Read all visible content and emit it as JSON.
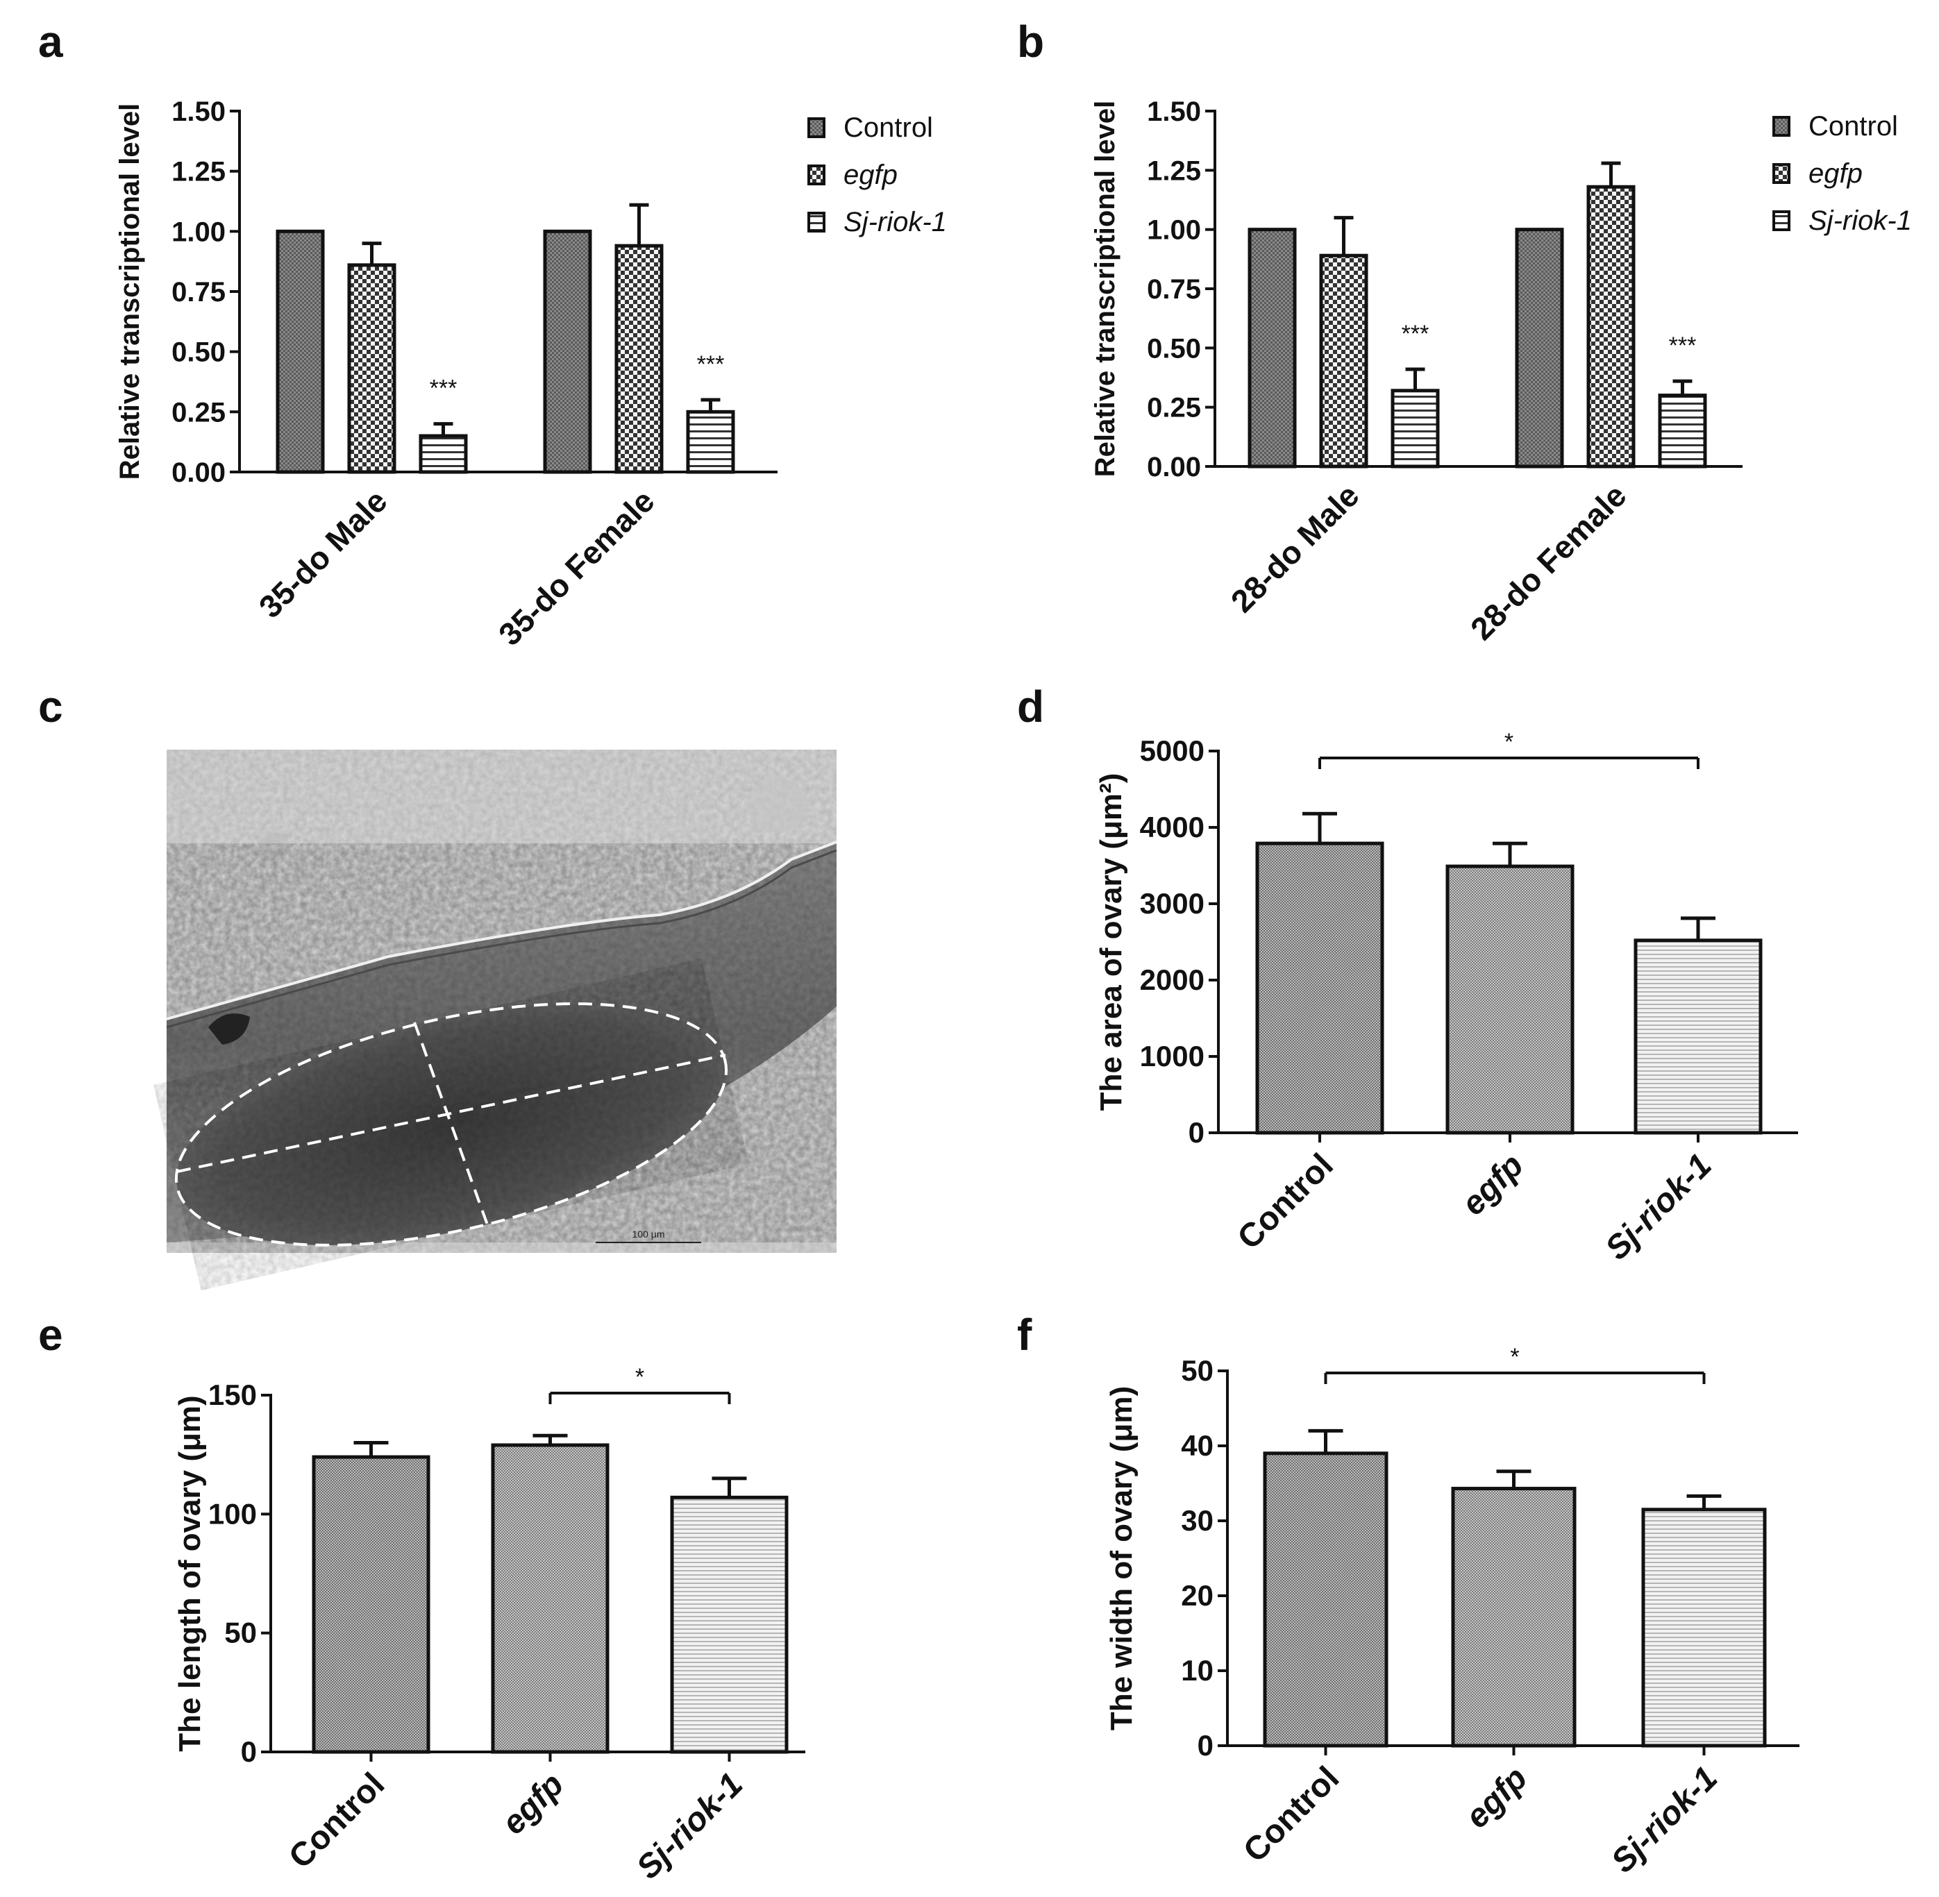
{
  "panels": {
    "a": "a",
    "b": "b",
    "c": "c",
    "d": "d",
    "e": "e",
    "f": "f"
  },
  "micrograph": {
    "scale_bar_label": "100 μm"
  },
  "chart_data": [
    {
      "id": "a",
      "type": "bar",
      "panel_label": "a",
      "ylabel": "Relative transcriptional level",
      "ylim": [
        0,
        1.5
      ],
      "yticks": [
        "0.00",
        "0.25",
        "0.50",
        "0.75",
        "1.00",
        "1.25",
        "1.50"
      ],
      "categories": [
        "35-do Male",
        "35-do Female"
      ],
      "series": [
        {
          "name": "Control",
          "italic": false,
          "values": [
            1.0,
            1.0
          ],
          "errors": [
            0,
            0
          ]
        },
        {
          "name": "egfp",
          "italic": true,
          "values": [
            0.86,
            0.94
          ],
          "errors": [
            0.09,
            0.17
          ]
        },
        {
          "name": "Sj-riok-1",
          "italic": true,
          "values": [
            0.15,
            0.25
          ],
          "errors": [
            0.05,
            0.05
          ]
        }
      ],
      "annotations": [
        "***",
        "***"
      ]
    },
    {
      "id": "b",
      "type": "bar",
      "panel_label": "b",
      "ylabel": "Relative transcriptional level",
      "ylim": [
        0,
        1.5
      ],
      "yticks": [
        "0.00",
        "0.25",
        "0.50",
        "0.75",
        "1.00",
        "1.25",
        "1.50"
      ],
      "categories": [
        "28-do Male",
        "28-do Female"
      ],
      "series": [
        {
          "name": "Control",
          "italic": false,
          "values": [
            1.0,
            1.0
          ],
          "errors": [
            0,
            0
          ]
        },
        {
          "name": "egfp",
          "italic": true,
          "values": [
            0.89,
            1.18
          ],
          "errors": [
            0.16,
            0.1
          ]
        },
        {
          "name": "Sj-riok-1",
          "italic": true,
          "values": [
            0.32,
            0.3
          ],
          "errors": [
            0.09,
            0.06
          ]
        }
      ],
      "annotations": [
        "***",
        "***"
      ]
    },
    {
      "id": "d",
      "type": "bar",
      "panel_label": "d",
      "ylabel": "The area of ovary (μm²)",
      "ylim": [
        0,
        5000
      ],
      "yticks": [
        "0",
        "1000",
        "2000",
        "3000",
        "4000",
        "5000"
      ],
      "categories": [
        "Control",
        "egfp",
        "Sj-riok-1"
      ],
      "italic_categories": [
        false,
        true,
        true
      ],
      "values": [
        3790,
        3490,
        2520
      ],
      "errors": [
        390,
        300,
        290
      ],
      "significance": {
        "from": 0,
        "to": 2,
        "label": "*"
      }
    },
    {
      "id": "e",
      "type": "bar",
      "panel_label": "e",
      "ylabel": "The length of ovary (μm)",
      "ylim": [
        0,
        150
      ],
      "yticks": [
        "0",
        "50",
        "100",
        "150"
      ],
      "categories": [
        "Control",
        "egfp",
        "Sj-riok-1"
      ],
      "italic_categories": [
        false,
        true,
        true
      ],
      "values": [
        124,
        129,
        107
      ],
      "errors": [
        6,
        4,
        8
      ],
      "significance": {
        "from": 1,
        "to": 2,
        "label": "*"
      }
    },
    {
      "id": "f",
      "type": "bar",
      "panel_label": "f",
      "ylabel": "The width of ovary (μm)",
      "ylim": [
        0,
        50
      ],
      "yticks": [
        "0",
        "10",
        "20",
        "30",
        "40",
        "50"
      ],
      "categories": [
        "Control",
        "egfp",
        "Sj-riok-1"
      ],
      "italic_categories": [
        false,
        true,
        true
      ],
      "values": [
        39,
        34.3,
        31.5
      ],
      "errors": [
        3,
        2.3,
        1.8
      ],
      "significance": {
        "from": 0,
        "to": 2,
        "label": "*"
      }
    }
  ]
}
